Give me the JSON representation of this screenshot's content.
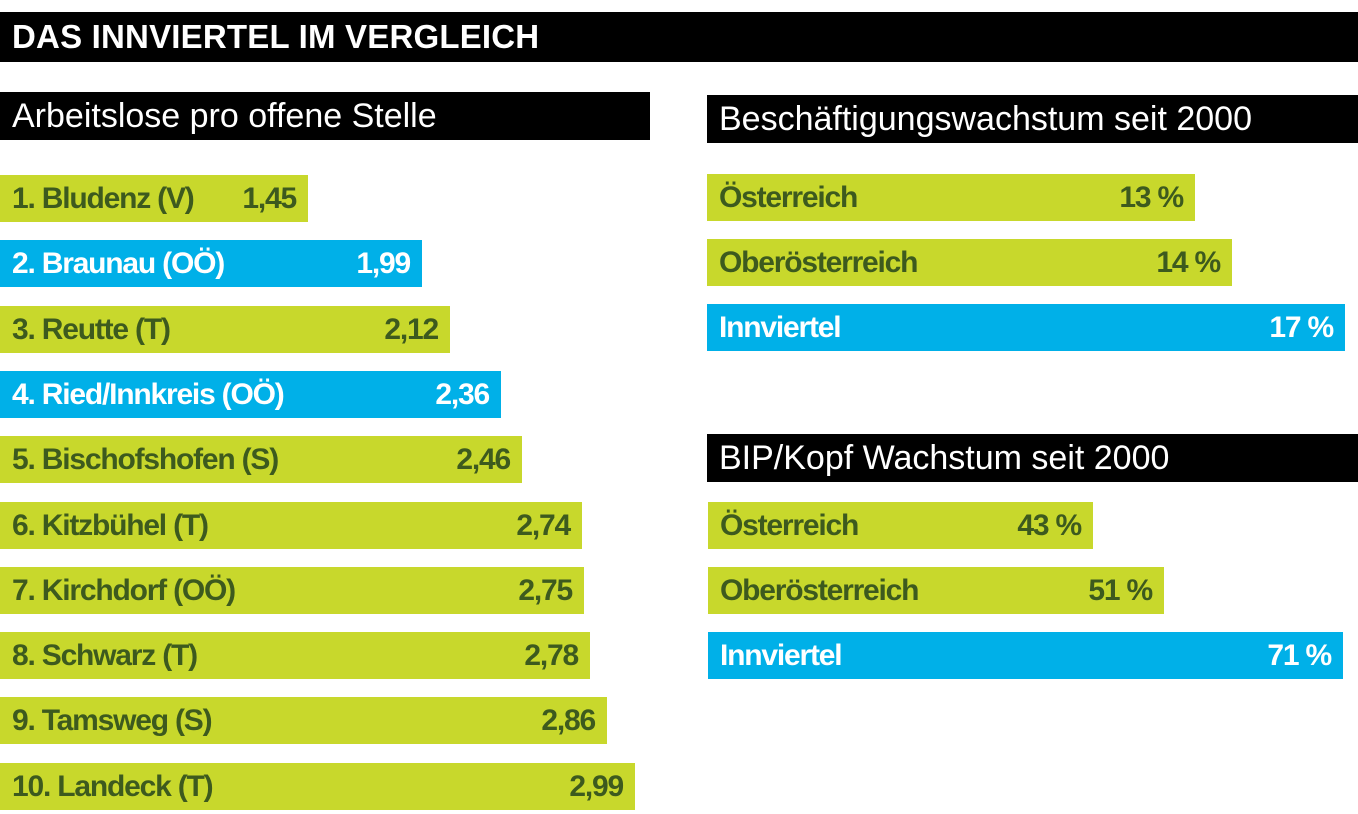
{
  "header": {
    "title": "DAS INNVIERTEL IM VERGLEICH"
  },
  "colors": {
    "highlight": "#00b0e8",
    "default": "#c8d82c",
    "text_default": "#3d5a1e",
    "text_highlight": "#ffffff",
    "banner": "#000000"
  },
  "chart_data": [
    {
      "type": "bar",
      "orientation": "horizontal",
      "title": "Arbeitslose pro offene Stelle",
      "categories": [
        "1. Bludenz (V)",
        "2. Braunau (OÖ)",
        "3. Reutte (T)",
        "4. Ried/Innkreis (OÖ)",
        "5. Bischofshofen (S)",
        "6. Kitzbühel (T)",
        "7. Kirchdorf (OÖ)",
        "8. Schwarz (T)",
        "9. Tamsweg (S)",
        "10. Landeck (T)"
      ],
      "values": [
        1.45,
        1.99,
        2.12,
        2.36,
        2.46,
        2.74,
        2.75,
        2.78,
        2.86,
        2.99
      ],
      "value_labels": [
        "1,45",
        "1,99",
        "2,12",
        "2,36",
        "2,46",
        "2,74",
        "2,75",
        "2,78",
        "2,86",
        "2,99"
      ],
      "highlight": [
        false,
        true,
        false,
        true,
        false,
        false,
        false,
        false,
        false,
        false
      ]
    },
    {
      "type": "bar",
      "orientation": "horizontal",
      "title": "Beschäftigungswachstum seit 2000",
      "categories": [
        "Österreich",
        "Oberösterreich",
        "Innviertel"
      ],
      "values": [
        13,
        14,
        17
      ],
      "value_labels": [
        "13 %",
        "14 %",
        "17 %"
      ],
      "highlight": [
        false,
        false,
        true
      ]
    },
    {
      "type": "bar",
      "orientation": "horizontal",
      "title": "BIP/Kopf Wachstum seit 2000",
      "categories": [
        "Österreich",
        "Oberösterreich",
        "Innviertel"
      ],
      "values": [
        43,
        51,
        71
      ],
      "value_labels": [
        "43 %",
        "51 %",
        "71 %"
      ],
      "highlight": [
        false,
        false,
        true
      ]
    }
  ]
}
